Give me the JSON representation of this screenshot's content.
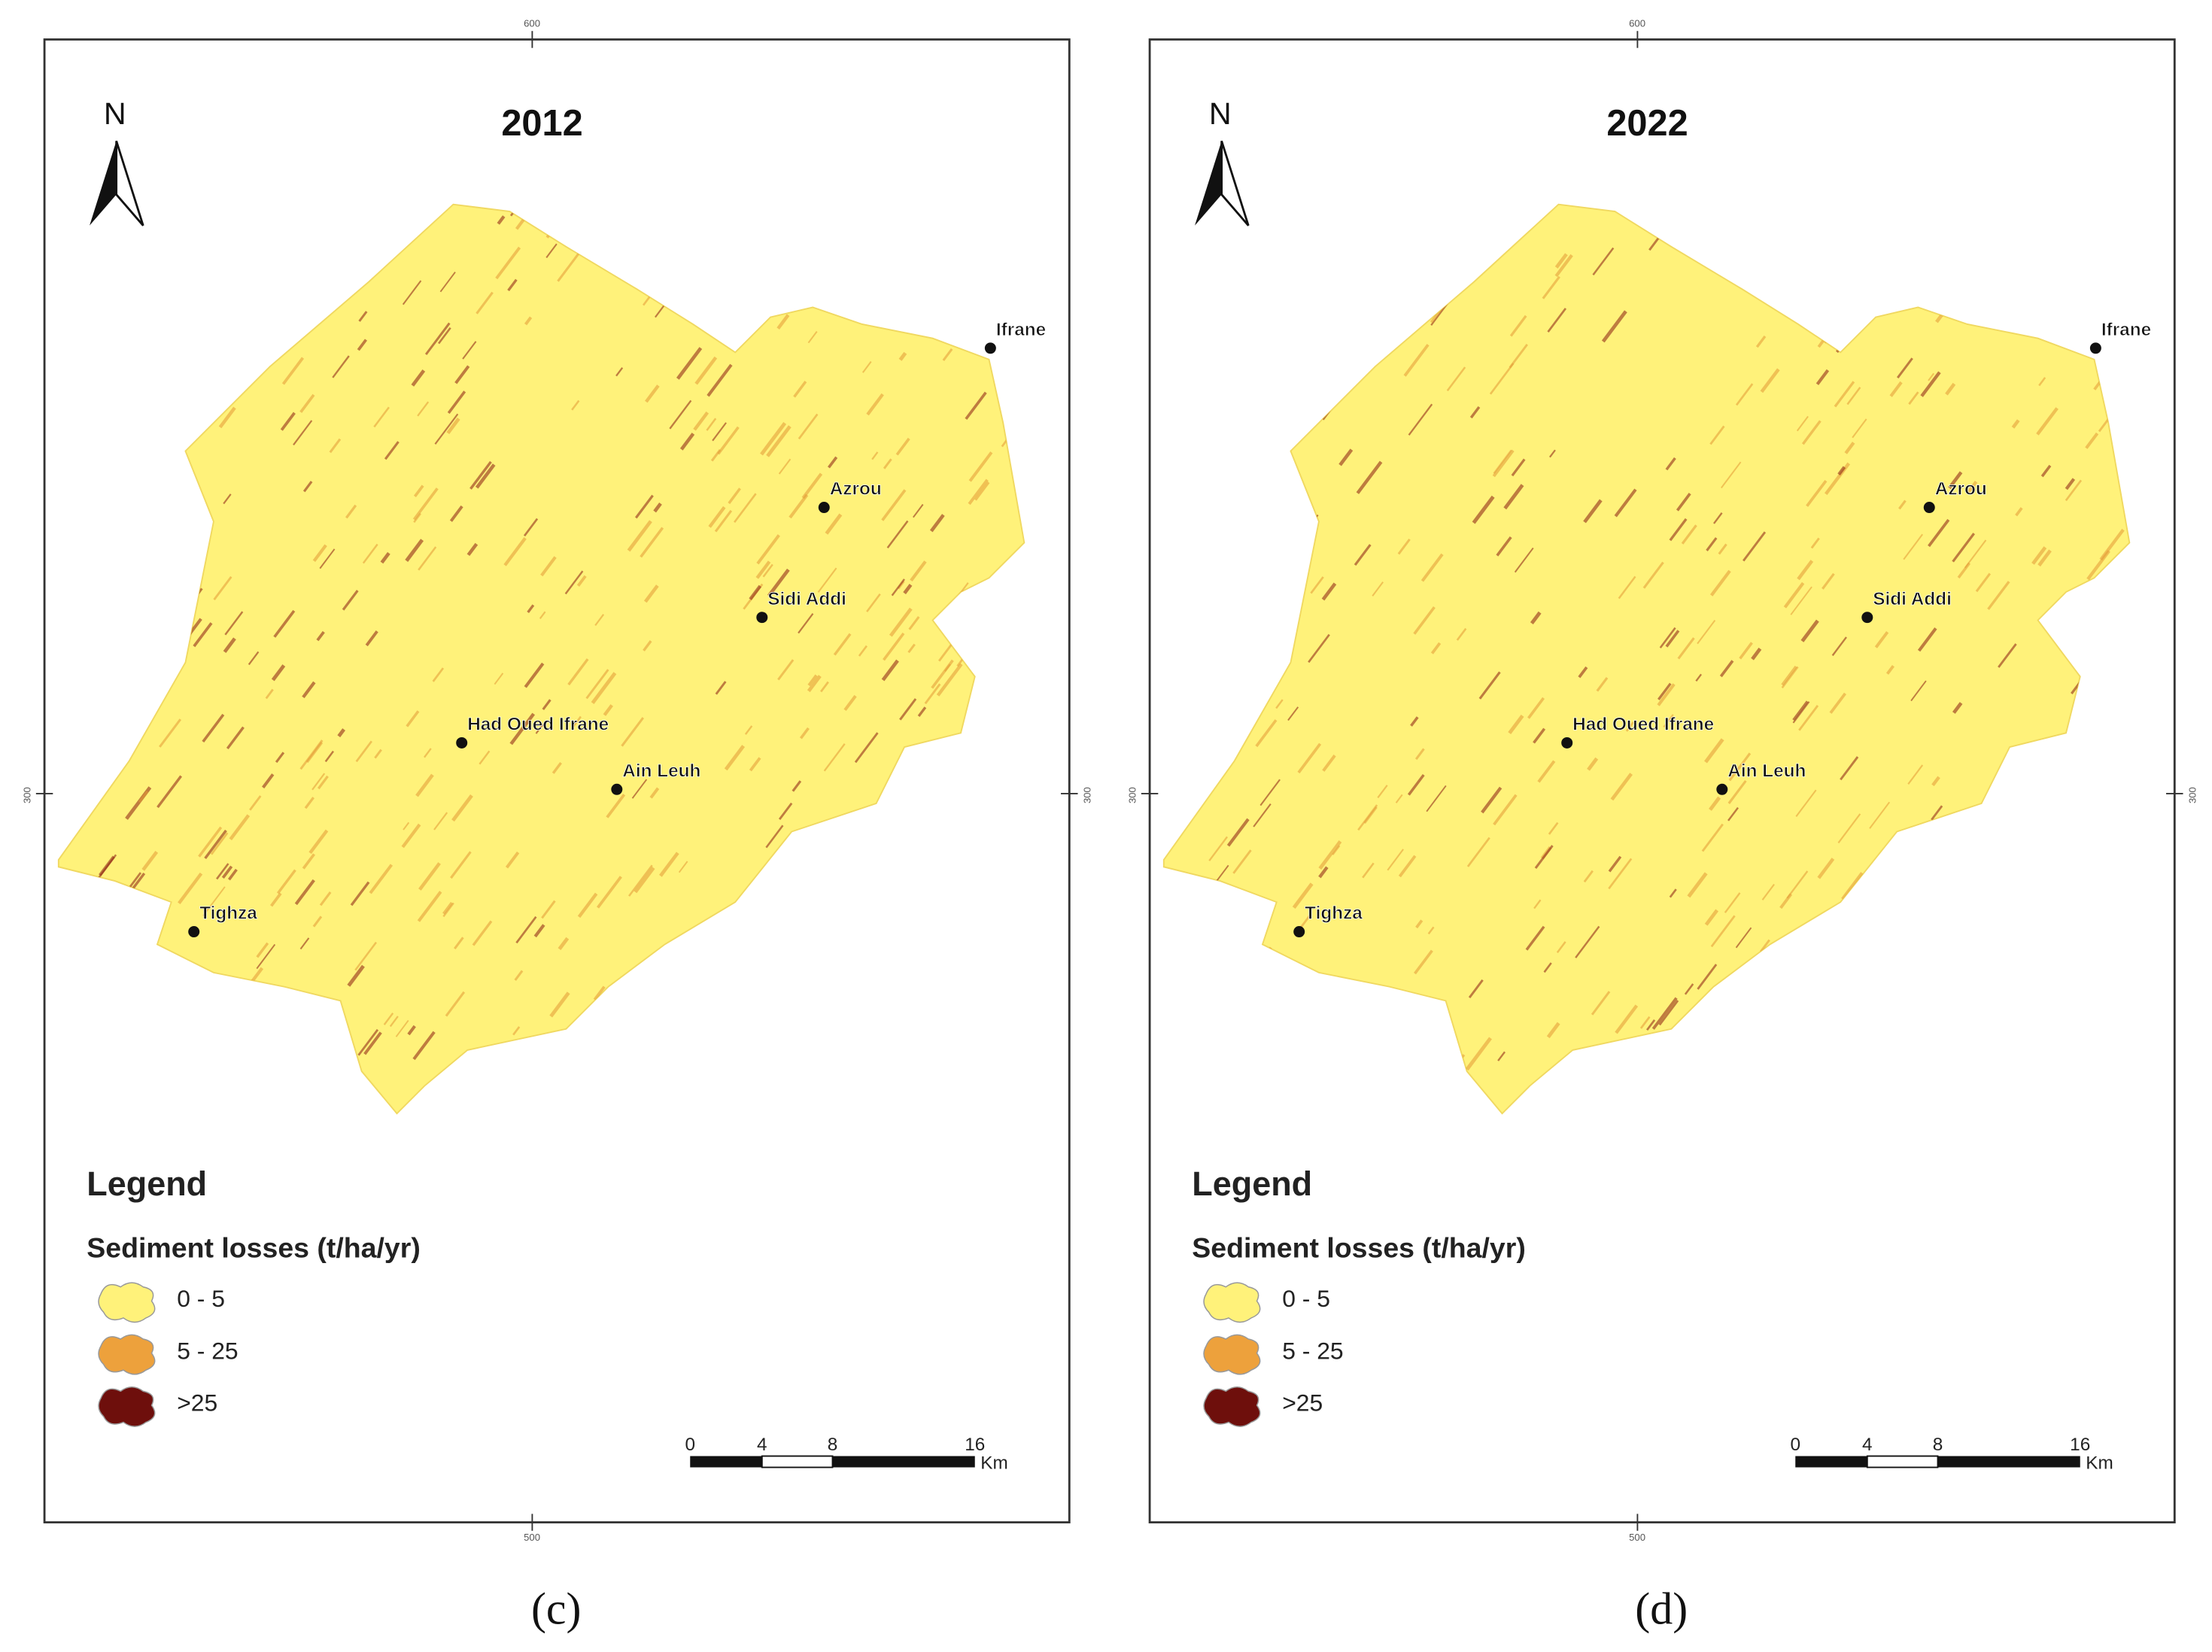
{
  "panels": [
    {
      "title": "2012",
      "caption": "(c)",
      "places": [
        {
          "name": "Ifrane"
        },
        {
          "name": "Azrou"
        },
        {
          "name": "Sidi Addi"
        },
        {
          "name": "Had Oued Ifrane"
        },
        {
          "name": "Ain Leuh"
        },
        {
          "name": "Tighza"
        }
      ],
      "north": "N",
      "legend": {
        "title": "Legend",
        "heading": "Sediment losses (t/ha/yr)",
        "items": [
          {
            "label": "0 - 5",
            "color": "#fff27a"
          },
          {
            "label": "5 - 25",
            "color": "#eda13c"
          },
          {
            "label": ">25",
            "color": "#6e0f0c"
          }
        ]
      },
      "scale": {
        "ticks": [
          "0",
          "4",
          "8",
          "16"
        ],
        "unit": "Km"
      },
      "coords": {
        "top": "600",
        "bottom": "500",
        "left": "300",
        "right": "300"
      }
    },
    {
      "title": "2022",
      "caption": "(d)",
      "places": [
        {
          "name": "Ifrane"
        },
        {
          "name": "Azrou"
        },
        {
          "name": "Sidi Addi"
        },
        {
          "name": "Had Oued Ifrane"
        },
        {
          "name": "Ain Leuh"
        },
        {
          "name": "Tighza"
        }
      ],
      "north": "N",
      "legend": {
        "title": "Legend",
        "heading": "Sediment losses (t/ha/yr)",
        "items": [
          {
            "label": "0 - 5",
            "color": "#fff27a"
          },
          {
            "label": "5 - 25",
            "color": "#eda13c"
          },
          {
            "label": ">25",
            "color": "#6e0f0c"
          }
        ]
      },
      "scale": {
        "ticks": [
          "0",
          "4",
          "8",
          "16"
        ],
        "unit": "Km"
      },
      "coords": {
        "top": "600",
        "bottom": "500",
        "left": "300",
        "right": "300"
      }
    }
  ]
}
